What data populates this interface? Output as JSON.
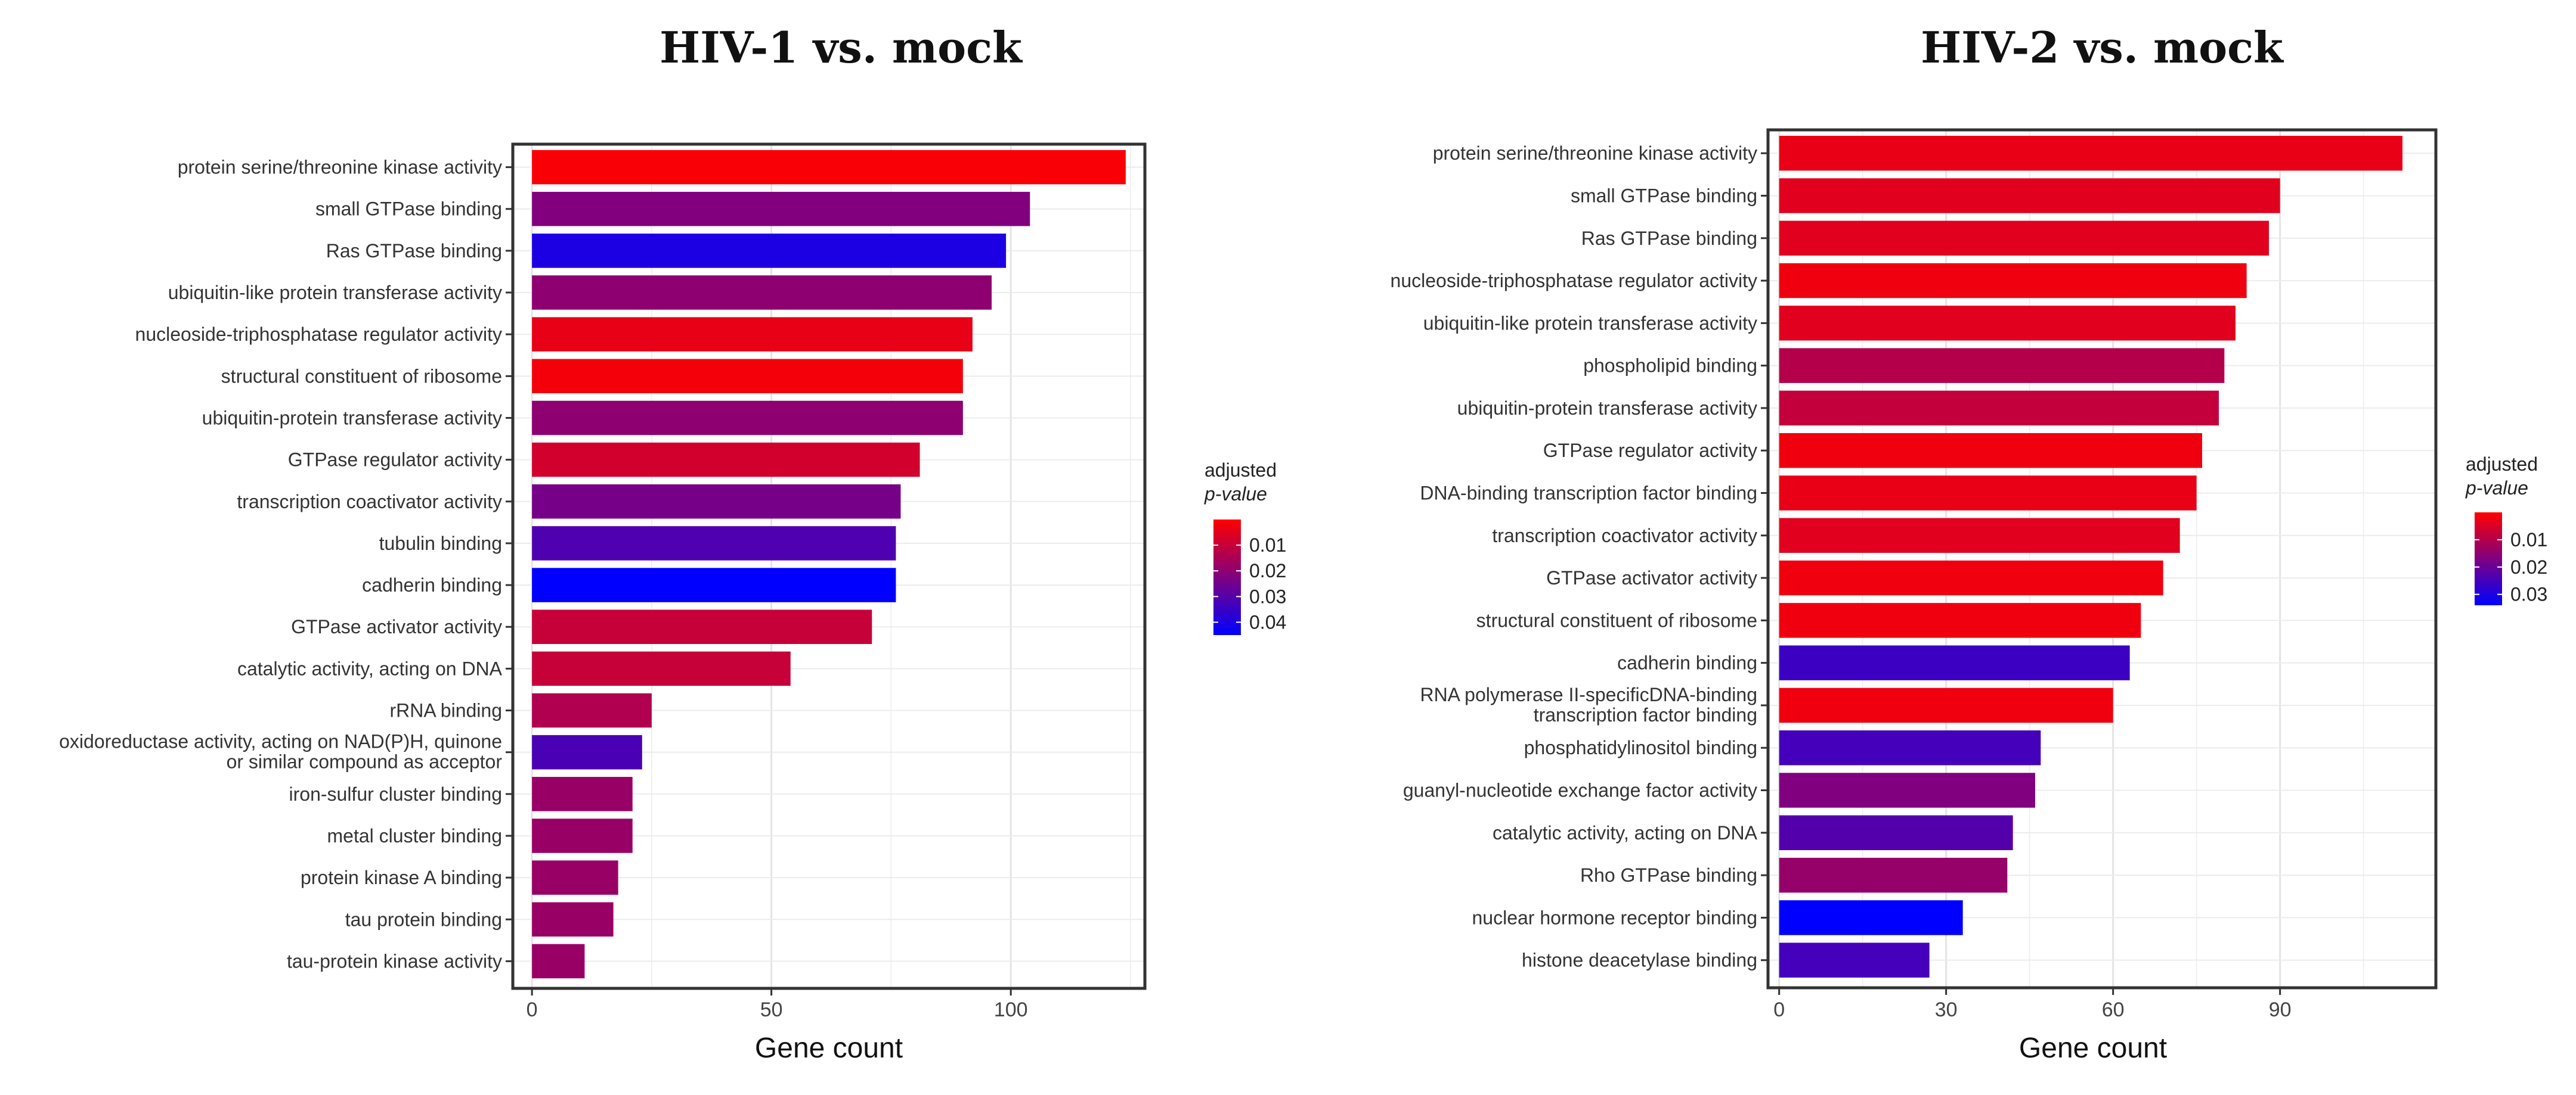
{
  "chart_data": [
    {
      "type": "bar",
      "orientation": "horizontal",
      "title": "HIV-1 vs. mock",
      "xlabel": "Gene count",
      "ylabel": "",
      "xlim": [
        -4,
        128
      ],
      "xticks": [
        0,
        50,
        100
      ],
      "grid": true,
      "legend": {
        "title_line1": "adjusted",
        "title_line2": "p-value",
        "ticks": [
          0.01,
          0.02,
          0.03,
          0.04
        ],
        "range": [
          0.0,
          0.045
        ],
        "placement": "right"
      },
      "color_scale": {
        "low": "#ff0000",
        "high": "#0000ff"
      },
      "categories": [
        "protein serine/threonine kinase activity",
        "small GTPase binding",
        "Ras GTPase binding",
        "ubiquitin-like protein transferase activity",
        "nucleoside-triphosphatase regulator activity",
        "structural constituent of ribosome",
        "ubiquitin-protein transferase activity",
        "GTPase regulator activity",
        "transcription coactivator activity",
        "tubulin binding",
        "cadherin binding",
        "GTPase activator activity",
        "catalytic activity, acting on DNA",
        "rRNA binding",
        "oxidoreductase activity, acting on NAD(P)H, quinone|or similar compound as acceptor",
        "iron-sulfur cluster binding",
        "metal cluster binding",
        "protein kinase A binding",
        "tau protein binding",
        "tau-protein kinase activity"
      ],
      "values": [
        124,
        104,
        99,
        96,
        92,
        90,
        90,
        81,
        77,
        76,
        76,
        71,
        54,
        25,
        23,
        21,
        21,
        18,
        17,
        11
      ],
      "pvalues": [
        0.001,
        0.022,
        0.04,
        0.02,
        0.004,
        0.002,
        0.02,
        0.008,
        0.024,
        0.031,
        0.045,
        0.01,
        0.01,
        0.014,
        0.032,
        0.018,
        0.018,
        0.018,
        0.018,
        0.018
      ]
    },
    {
      "type": "bar",
      "orientation": "horizontal",
      "title": "HIV-2 vs. mock",
      "xlabel": "Gene count",
      "ylabel": "",
      "xlim": [
        -2,
        118
      ],
      "xticks": [
        0,
        30,
        60,
        90
      ],
      "grid": true,
      "legend": {
        "title_line1": "adjusted",
        "title_line2": "p-value",
        "ticks": [
          0.01,
          0.02,
          0.03
        ],
        "range": [
          0.0,
          0.034
        ],
        "placement": "right"
      },
      "color_scale": {
        "low": "#ff0000",
        "high": "#0000ff"
      },
      "categories": [
        "protein serine/threonine kinase activity",
        "small GTPase binding",
        "Ras GTPase binding",
        "nucleoside-triphosphatase regulator activity",
        "ubiquitin-like protein transferase activity",
        "phospholipid binding",
        "ubiquitin-protein transferase activity",
        "GTPase regulator activity",
        "DNA-binding transcription factor binding",
        "transcription coactivator activity",
        "GTPase activator activity",
        "structural constituent of ribosome",
        "cadherin binding",
        "RNA polymerase II-specificDNA-binding|transcription factor binding",
        "phosphatidylinositol binding",
        "guanyl-nucleotide exchange factor activity",
        "catalytic activity, acting on DNA",
        "Rho GTPase binding",
        "nuclear hormone receptor binding",
        "histone deacetylase binding"
      ],
      "values": [
        112,
        90,
        88,
        84,
        82,
        80,
        79,
        76,
        75,
        72,
        69,
        65,
        63,
        60,
        47,
        46,
        42,
        41,
        33,
        27
      ],
      "pvalues": [
        0.003,
        0.004,
        0.004,
        0.002,
        0.004,
        0.01,
        0.008,
        0.002,
        0.003,
        0.004,
        0.002,
        0.002,
        0.026,
        0.002,
        0.025,
        0.017,
        0.023,
        0.014,
        0.034,
        0.025
      ]
    }
  ]
}
